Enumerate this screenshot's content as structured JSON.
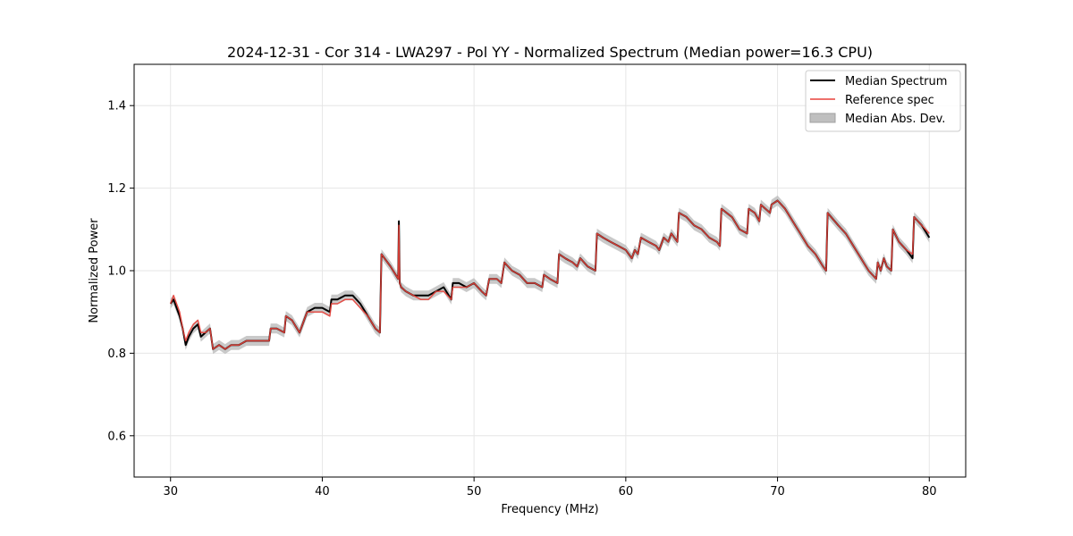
{
  "chart_data": {
    "type": "line",
    "title": "2024-12-31 - Cor 314 - LWA297 - Pol YY - Normalized Spectrum (Median power=16.3 CPU)",
    "xlabel": "Frequency (MHz)",
    "ylabel": "Normalized Power",
    "xlim": [
      27.6,
      82.4
    ],
    "ylim": [
      0.5,
      1.5
    ],
    "xticks": [
      30,
      40,
      50,
      60,
      70,
      80
    ],
    "yticks": [
      0.6,
      0.8,
      1.0,
      1.2,
      1.4
    ],
    "xtick_labels": [
      "30",
      "40",
      "50",
      "60",
      "70",
      "80"
    ],
    "ytick_labels": [
      "0.6",
      "0.8",
      "1.0",
      "1.2",
      "1.4"
    ],
    "grid": true,
    "legend_position": "top-right",
    "legend": [
      {
        "label": "Median Spectrum",
        "kind": "line",
        "color": "#000000"
      },
      {
        "label": "Reference spec",
        "kind": "line",
        "color": "#e8413a"
      },
      {
        "label": "Median Abs. Dev.",
        "kind": "band",
        "color": "#bfbfbf"
      }
    ],
    "series": [
      {
        "name": "Median Spectrum",
        "x": [
          30.0,
          30.2,
          30.4,
          30.6,
          30.8,
          31.0,
          31.2,
          31.5,
          31.8,
          32.0,
          32.3,
          32.6,
          32.8,
          33.2,
          33.6,
          34.0,
          34.5,
          35.0,
          35.5,
          36.0,
          36.5,
          36.6,
          37.0,
          37.5,
          37.6,
          38.0,
          38.5,
          38.8,
          39.0,
          39.5,
          40.0,
          40.5,
          40.6,
          41.0,
          41.5,
          42.0,
          42.5,
          43.0,
          43.5,
          43.8,
          43.9,
          44.5,
          45.0,
          45.05,
          45.1,
          45.2,
          45.5,
          46.0,
          46.5,
          47.0,
          47.5,
          48.0,
          48.5,
          48.6,
          49.0,
          49.5,
          50.0,
          50.5,
          50.8,
          51.0,
          51.5,
          51.8,
          52.0,
          52.5,
          53.0,
          53.5,
          54.0,
          54.5,
          54.6,
          55.0,
          55.5,
          55.6,
          56.0,
          56.5,
          56.8,
          57.0,
          57.5,
          58.0,
          58.1,
          58.5,
          59.0,
          59.5,
          60.0,
          60.2,
          60.4,
          60.6,
          60.8,
          61.0,
          61.5,
          62.0,
          62.2,
          62.5,
          62.8,
          63.0,
          63.4,
          63.5,
          64.0,
          64.5,
          65.0,
          65.5,
          66.0,
          66.2,
          66.3,
          67.0,
          67.5,
          68.0,
          68.1,
          68.5,
          68.8,
          68.9,
          69.5,
          69.6,
          70.0,
          70.5,
          71.0,
          71.5,
          72.0,
          72.5,
          73.0,
          73.2,
          73.3,
          74.0,
          74.5,
          75.0,
          75.5,
          76.0,
          76.5,
          76.6,
          76.8,
          77.0,
          77.2,
          77.5,
          77.6,
          78.0,
          78.5,
          78.9,
          79.0,
          79.5,
          80.0
        ],
        "values": [
          0.92,
          0.93,
          0.91,
          0.89,
          0.86,
          0.82,
          0.84,
          0.86,
          0.87,
          0.84,
          0.85,
          0.86,
          0.81,
          0.82,
          0.81,
          0.82,
          0.82,
          0.83,
          0.83,
          0.83,
          0.83,
          0.86,
          0.86,
          0.85,
          0.89,
          0.88,
          0.85,
          0.88,
          0.9,
          0.91,
          0.91,
          0.9,
          0.93,
          0.93,
          0.94,
          0.94,
          0.92,
          0.89,
          0.86,
          0.85,
          1.04,
          1.01,
          0.98,
          1.12,
          0.97,
          0.96,
          0.95,
          0.94,
          0.94,
          0.94,
          0.95,
          0.96,
          0.93,
          0.97,
          0.97,
          0.96,
          0.97,
          0.95,
          0.94,
          0.98,
          0.98,
          0.97,
          1.02,
          1.0,
          0.99,
          0.97,
          0.97,
          0.96,
          0.99,
          0.98,
          0.97,
          1.04,
          1.03,
          1.02,
          1.01,
          1.03,
          1.01,
          1.0,
          1.09,
          1.08,
          1.07,
          1.06,
          1.05,
          1.04,
          1.03,
          1.05,
          1.04,
          1.08,
          1.07,
          1.06,
          1.05,
          1.08,
          1.07,
          1.09,
          1.07,
          1.14,
          1.13,
          1.11,
          1.1,
          1.08,
          1.07,
          1.06,
          1.15,
          1.13,
          1.1,
          1.09,
          1.15,
          1.14,
          1.12,
          1.16,
          1.14,
          1.16,
          1.17,
          1.15,
          1.12,
          1.09,
          1.06,
          1.04,
          1.01,
          1.0,
          1.14,
          1.11,
          1.09,
          1.06,
          1.03,
          1.0,
          0.98,
          1.02,
          1.0,
          1.03,
          1.01,
          1.0,
          1.1,
          1.07,
          1.05,
          1.03,
          1.13,
          1.11,
          1.08
        ]
      },
      {
        "name": "Reference spec",
        "x": [
          30.0,
          30.2,
          30.4,
          30.6,
          30.8,
          31.0,
          31.2,
          31.5,
          31.8,
          32.0,
          32.3,
          32.6,
          32.8,
          33.2,
          33.6,
          34.0,
          34.5,
          35.0,
          35.5,
          36.0,
          36.5,
          36.6,
          37.0,
          37.5,
          37.6,
          38.0,
          38.5,
          38.8,
          39.0,
          39.5,
          40.0,
          40.5,
          40.6,
          41.0,
          41.5,
          42.0,
          42.5,
          43.0,
          43.5,
          43.8,
          43.9,
          44.5,
          45.0,
          45.05,
          45.1,
          45.2,
          45.5,
          46.0,
          46.5,
          47.0,
          47.5,
          48.0,
          48.5,
          48.6,
          49.0,
          49.5,
          50.0,
          50.5,
          50.8,
          51.0,
          51.5,
          51.8,
          52.0,
          52.5,
          53.0,
          53.5,
          54.0,
          54.5,
          54.6,
          55.0,
          55.5,
          55.6,
          56.0,
          56.5,
          56.8,
          57.0,
          57.5,
          58.0,
          58.1,
          58.5,
          59.0,
          59.5,
          60.0,
          60.2,
          60.4,
          60.6,
          60.8,
          61.0,
          61.5,
          62.0,
          62.2,
          62.5,
          62.8,
          63.0,
          63.4,
          63.5,
          64.0,
          64.5,
          65.0,
          65.5,
          66.0,
          66.2,
          66.3,
          67.0,
          67.5,
          68.0,
          68.1,
          68.5,
          68.8,
          68.9,
          69.5,
          69.6,
          70.0,
          70.5,
          71.0,
          71.5,
          72.0,
          72.5,
          73.0,
          73.2,
          73.3,
          74.0,
          74.5,
          75.0,
          75.5,
          76.0,
          76.5,
          76.6,
          76.8,
          77.0,
          77.2,
          77.5,
          77.6,
          78.0,
          78.5,
          78.9,
          79.0,
          79.5,
          80.0
        ],
        "values": [
          0.92,
          0.94,
          0.92,
          0.9,
          0.86,
          0.83,
          0.85,
          0.87,
          0.88,
          0.85,
          0.85,
          0.86,
          0.81,
          0.82,
          0.81,
          0.82,
          0.82,
          0.83,
          0.83,
          0.83,
          0.83,
          0.86,
          0.86,
          0.85,
          0.89,
          0.88,
          0.85,
          0.88,
          0.9,
          0.9,
          0.9,
          0.89,
          0.92,
          0.92,
          0.93,
          0.93,
          0.91,
          0.89,
          0.86,
          0.85,
          1.04,
          1.01,
          0.98,
          1.11,
          0.97,
          0.96,
          0.95,
          0.94,
          0.93,
          0.93,
          0.95,
          0.95,
          0.93,
          0.96,
          0.96,
          0.96,
          0.97,
          0.95,
          0.94,
          0.98,
          0.98,
          0.97,
          1.02,
          1.0,
          0.99,
          0.97,
          0.97,
          0.96,
          0.99,
          0.98,
          0.97,
          1.04,
          1.03,
          1.02,
          1.01,
          1.03,
          1.01,
          1.0,
          1.09,
          1.08,
          1.07,
          1.06,
          1.05,
          1.04,
          1.03,
          1.05,
          1.04,
          1.08,
          1.07,
          1.06,
          1.05,
          1.08,
          1.07,
          1.09,
          1.07,
          1.14,
          1.13,
          1.11,
          1.1,
          1.08,
          1.07,
          1.06,
          1.15,
          1.13,
          1.1,
          1.09,
          1.15,
          1.14,
          1.12,
          1.16,
          1.14,
          1.16,
          1.17,
          1.15,
          1.12,
          1.09,
          1.06,
          1.04,
          1.01,
          1.0,
          1.14,
          1.11,
          1.09,
          1.06,
          1.03,
          1.0,
          0.98,
          1.02,
          1.0,
          1.03,
          1.01,
          1.0,
          1.1,
          1.07,
          1.05,
          1.04,
          1.13,
          1.11,
          1.09
        ]
      }
    ],
    "band": {
      "name": "Median Abs. Dev.",
      "half_width": 0.012
    }
  }
}
